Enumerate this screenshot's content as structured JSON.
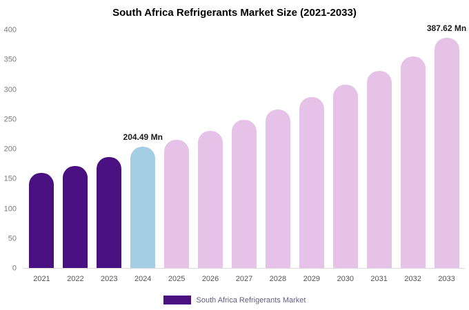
{
  "chart_data": {
    "type": "bar",
    "title": "South Africa Refrigerants Market Size (2021-2033)",
    "categories": [
      "2021",
      "2022",
      "2023",
      "2024",
      "2025",
      "2026",
      "2027",
      "2028",
      "2029",
      "2030",
      "2031",
      "2032",
      "2033"
    ],
    "values": [
      160,
      172,
      187,
      204.49,
      216,
      231,
      249,
      267,
      287,
      309,
      332,
      356,
      387.62
    ],
    "bar_colors": [
      "#4a1082",
      "#4a1082",
      "#4a1082",
      "#a4cee4",
      "#e6c2e8",
      "#e6c2e8",
      "#e6c2e8",
      "#e6c2e8",
      "#e6c2e8",
      "#e6c2e8",
      "#e6c2e8",
      "#e6c2e8",
      "#e6c2e8"
    ],
    "data_labels": [
      null,
      null,
      null,
      "204.49 Mn",
      null,
      null,
      null,
      null,
      null,
      null,
      null,
      null,
      "387.62 Mn"
    ],
    "ylim": [
      0,
      400
    ],
    "yticks": [
      0,
      50,
      100,
      150,
      200,
      250,
      300,
      350,
      400
    ],
    "grid": false,
    "legend_position": "bottom",
    "legend": [
      {
        "label": "South Africa Refrigerants Market",
        "color": "#4a1082"
      }
    ]
  }
}
